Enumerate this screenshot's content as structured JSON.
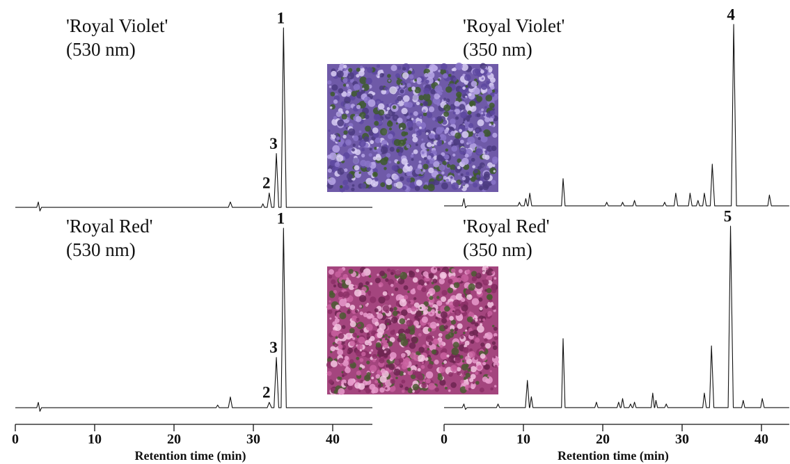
{
  "chart_data": [
    {
      "type": "line",
      "title": "'Royal Violet'",
      "subtitle": "(530 nm)",
      "color": "#111111",
      "xlim": [
        0,
        45
      ],
      "ylim": [
        -5,
        100
      ],
      "x": [
        0,
        2.7,
        2.9,
        3.1,
        3.3,
        26.85,
        27.1,
        27.35,
        31.0,
        31.2,
        31.4,
        31.75,
        32.0,
        32.3,
        32.6,
        32.9,
        33.2,
        33.5,
        33.8,
        34.15,
        45
      ],
      "values": [
        0,
        0,
        3,
        -2,
        0,
        0,
        3,
        0,
        0,
        2,
        0,
        0,
        8,
        0,
        0,
        30,
        0,
        0,
        100,
        0,
        0
      ],
      "annotations": [
        {
          "text": "1",
          "x": 33.8,
          "y": 100
        },
        {
          "text": "3",
          "x": 32.9,
          "y": 30
        },
        {
          "text": "2",
          "x": 32.0,
          "y": 8
        }
      ]
    },
    {
      "type": "line",
      "title": "'Royal Violet'",
      "subtitle": "(350 nm)",
      "color": "#111111",
      "xlim": [
        0,
        43.5
      ],
      "ylim": [
        -5,
        100
      ],
      "x": [
        0,
        2.3,
        2.5,
        2.7,
        2.9,
        9.3,
        9.5,
        9.7,
        10.1,
        10.3,
        10.5,
        10.6,
        10.8,
        11.05,
        14.8,
        15.0,
        15.25,
        20.3,
        20.5,
        20.7,
        22.3,
        22.5,
        22.7,
        23.8,
        24.0,
        24.2,
        27.6,
        27.8,
        28.0,
        29.0,
        29.2,
        29.45,
        30.8,
        31.0,
        31.25,
        31.8,
        32.0,
        32.2,
        32.6,
        32.8,
        33.05,
        33.55,
        33.8,
        34.1,
        36.2,
        36.5,
        36.85,
        40.8,
        41.0,
        41.25,
        43.5
      ],
      "values": [
        0,
        0,
        4,
        -1,
        0,
        0,
        2,
        0,
        0,
        4,
        0,
        0,
        7,
        0,
        0,
        15,
        0,
        0,
        2,
        0,
        0,
        2,
        0,
        0,
        3,
        0,
        0,
        2,
        0,
        0,
        7,
        0,
        0,
        7,
        0,
        0,
        3,
        0,
        0,
        7,
        0,
        0,
        23,
        0,
        0,
        100,
        0,
        0,
        6,
        0,
        0
      ],
      "annotations": [
        {
          "text": "4",
          "x": 36.5,
          "y": 100
        }
      ]
    },
    {
      "type": "line",
      "title": "'Royal Red'",
      "subtitle": "(530 nm)",
      "color": "#111111",
      "xlim": [
        0,
        45
      ],
      "ylim": [
        -5,
        100
      ],
      "xticks": [
        0,
        10,
        20,
        30,
        40
      ],
      "xlabel": "Retention time (min)",
      "x": [
        0,
        2.7,
        2.9,
        3.1,
        3.3,
        25.3,
        25.5,
        25.7,
        26.85,
        27.1,
        27.35,
        31.75,
        32.0,
        32.3,
        32.6,
        32.9,
        33.2,
        33.5,
        33.8,
        34.15,
        45
      ],
      "values": [
        0,
        0,
        3,
        -2,
        0,
        0,
        1.5,
        0,
        0,
        6,
        0,
        0,
        3,
        0,
        0,
        28,
        0,
        0,
        100,
        0,
        0
      ],
      "annotations": [
        {
          "text": "1",
          "x": 33.8,
          "y": 100
        },
        {
          "text": "3",
          "x": 32.9,
          "y": 28
        },
        {
          "text": "2",
          "x": 32.0,
          "y": 3
        }
      ]
    },
    {
      "type": "line",
      "title": "'Royal Red'",
      "subtitle": "(350 nm)",
      "color": "#111111",
      "xlim": [
        0,
        43.5
      ],
      "ylim": [
        -5,
        100
      ],
      "xticks": [
        0,
        10,
        20,
        30,
        40
      ],
      "xlabel": "Retention time (min)",
      "x": [
        0,
        2.3,
        2.5,
        2.7,
        2.9,
        6.6,
        6.8,
        7.0,
        10.25,
        10.5,
        10.75,
        10.8,
        11.0,
        11.2,
        14.8,
        15.0,
        15.25,
        19.0,
        19.2,
        19.4,
        21.8,
        22.0,
        22.2,
        22.3,
        22.5,
        22.7,
        23.3,
        23.5,
        23.7,
        23.8,
        24.0,
        24.2,
        26.1,
        26.3,
        26.5,
        26.55,
        26.7,
        26.9,
        27.8,
        28.0,
        28.2,
        32.6,
        32.8,
        33.05,
        33.45,
        33.7,
        34.0,
        35.8,
        36.1,
        36.45,
        37.5,
        37.7,
        37.9,
        39.9,
        40.1,
        40.35,
        43.5
      ],
      "values": [
        0,
        0,
        2,
        -1,
        0,
        0,
        2,
        0,
        0,
        15,
        0,
        0,
        6,
        0,
        0,
        38,
        0,
        0,
        3,
        0,
        0,
        3,
        0,
        0,
        5,
        0,
        0,
        2,
        0,
        0,
        3,
        0,
        0,
        8,
        0,
        0,
        4,
        0,
        0,
        2,
        0,
        0,
        8,
        0,
        0,
        34,
        0,
        0,
        100,
        0,
        0,
        4,
        0,
        0,
        5,
        0,
        0
      ],
      "annotations": [
        {
          "text": "5",
          "x": 36.1,
          "y": 100
        }
      ]
    }
  ]
}
